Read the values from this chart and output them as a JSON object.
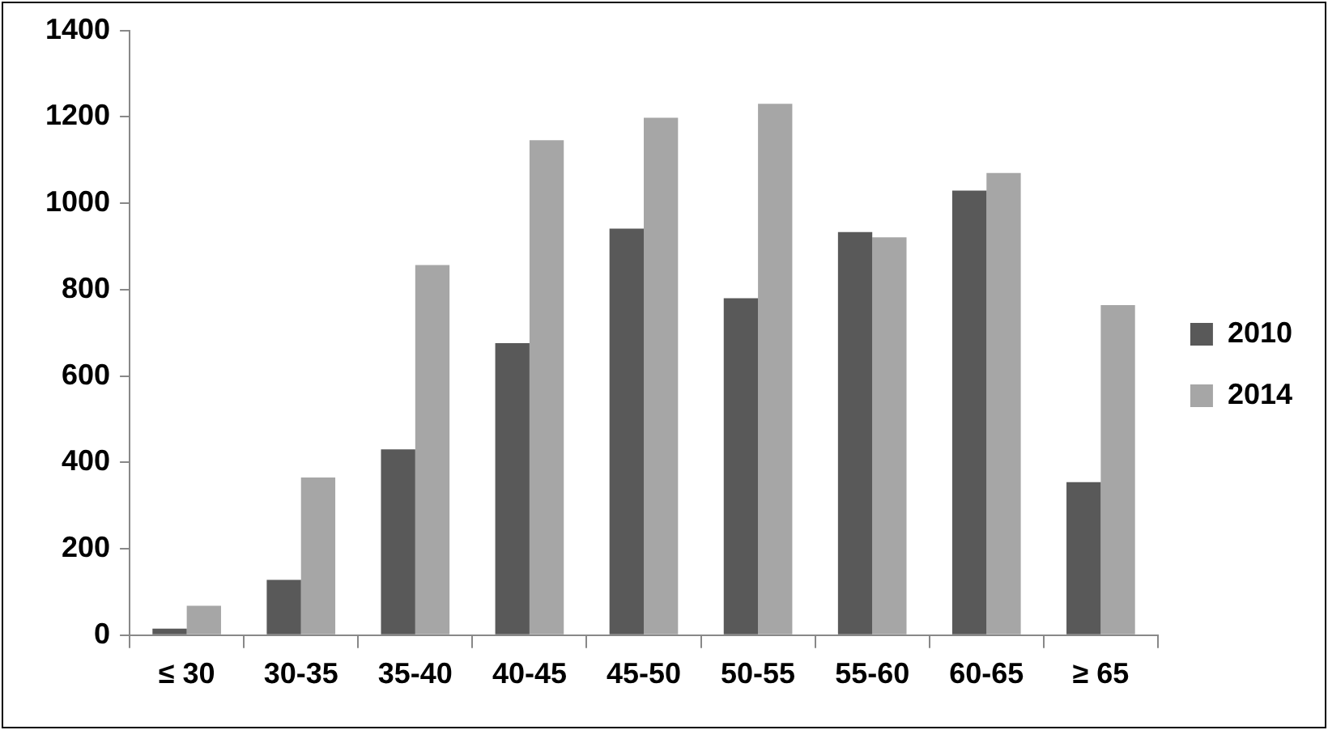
{
  "chart_data": {
    "type": "bar",
    "categories": [
      "≤ 30",
      "30-35",
      "35-40",
      "40-45",
      "45-50",
      "50-55",
      "55-60",
      "60-65",
      "≥ 65"
    ],
    "series": [
      {
        "name": "2010",
        "color": "#595959",
        "values": [
          15,
          128,
          430,
          676,
          941,
          780,
          933,
          1029,
          354
        ]
      },
      {
        "name": "2014",
        "color": "#a6a6a6",
        "values": [
          68,
          365,
          857,
          1146,
          1198,
          1230,
          921,
          1070,
          764
        ]
      }
    ],
    "ylim": [
      0,
      1400
    ],
    "yticks": [
      0,
      200,
      400,
      600,
      800,
      1000,
      1200,
      1400
    ],
    "grid": false,
    "legend": "right"
  }
}
